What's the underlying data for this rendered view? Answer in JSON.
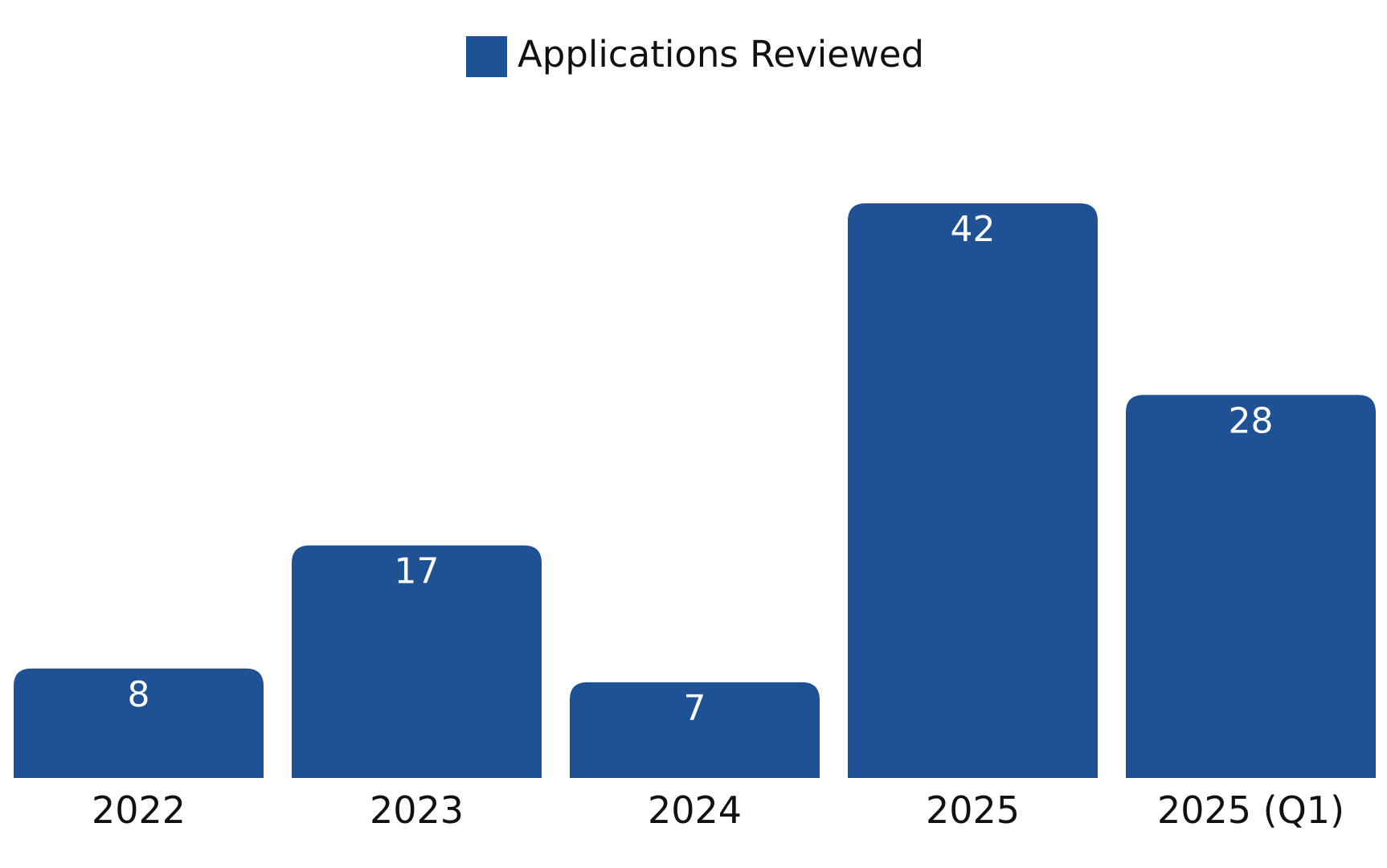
{
  "chart_data": {
    "type": "bar",
    "categories": [
      "2022",
      "2023",
      "2024",
      "2025",
      "2025 (Q1)"
    ],
    "series": [
      {
        "name": "Applications Reviewed",
        "values": [
          8,
          17,
          7,
          42,
          28
        ],
        "color": "#1e5295"
      }
    ],
    "data_labels": [
      "8",
      "17",
      "7",
      "42",
      "28"
    ],
    "legend": {
      "placement": "top-center",
      "label": "Applications Reviewed",
      "color": "#1e5295"
    },
    "title": "",
    "xlabel": "",
    "ylabel": "",
    "ylim": [
      0,
      42
    ],
    "grid": false,
    "y_axis_visible": false
  }
}
